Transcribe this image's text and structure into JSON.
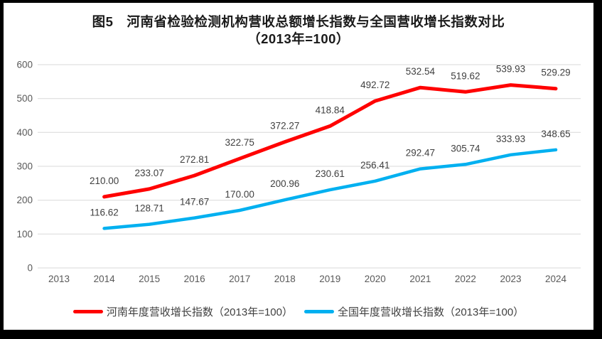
{
  "frame": {
    "border_color": "#000000",
    "background_color": "#ffffff"
  },
  "title": {
    "line1": "图5　河南省检验检测机构营收总额增长指数与全国营收增长指数对比",
    "line2": "（2013年=100）"
  },
  "axis": {
    "grid_color": "#d9d9d9",
    "tick_label_color": "#595959",
    "data_label_color": "#404040"
  },
  "chart_data": {
    "type": "line",
    "title": "图5 河南省检验检测机构营收总额增长指数与全国营收增长指数对比（2013年=100）",
    "categories": [
      "2013",
      "2014",
      "2015",
      "2016",
      "2017",
      "2018",
      "2019",
      "2020",
      "2021",
      "2022",
      "2023",
      "2024"
    ],
    "series": [
      {
        "name": "河南年度营收增长指数（2013年=100）",
        "color": "#ff0000",
        "line_width": 5,
        "values": [
          null,
          210.0,
          233.07,
          272.81,
          322.75,
          372.27,
          418.84,
          492.72,
          532.54,
          519.62,
          539.93,
          529.29
        ]
      },
      {
        "name": "全国年度营收增长指数（2013年=100）",
        "color": "#00b0f0",
        "line_width": 4.5,
        "values": [
          null,
          116.62,
          128.71,
          147.67,
          170.0,
          200.96,
          230.61,
          256.41,
          292.47,
          305.74,
          333.93,
          348.65
        ]
      }
    ],
    "xlabel": "",
    "ylabel": "",
    "ylim": [
      0,
      600
    ],
    "ytick_step": 100,
    "grid": true,
    "legend_position": "bottom",
    "data_labels": true,
    "data_label_decimals": 2
  }
}
